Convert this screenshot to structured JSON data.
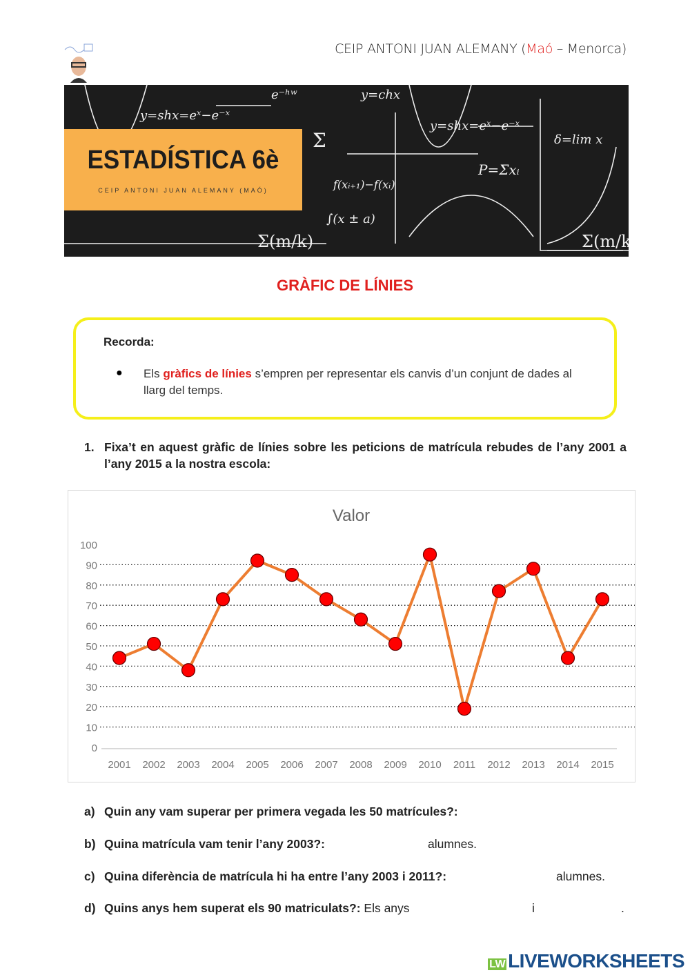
{
  "header": {
    "school_prefix": "CEIP ANTONI JUAN ALEMANY (",
    "school_city": "Maó",
    "school_suffix": " – Menorca)"
  },
  "banner": {
    "title": "ESTADÍSTICA 6è",
    "subtitle": "CEIP ANTONI JUAN ALEMANY (MAÓ)"
  },
  "heading": "GRÀFIC DE LÍNIES",
  "reminder": {
    "label": "Recorda:",
    "bullet": "●",
    "text_before": "Els ",
    "highlight": "gràfics de línies",
    "text_after": " s’empren per representar els canvis d’un conjunt de dades al llarg del temps."
  },
  "question1": {
    "number": "1.",
    "text": "Fixa’t en aquest gràfic de línies sobre les peticions de matrícula rebudes de l’any 2001 a l’any 2015 a la nostra escola:"
  },
  "chart_data": {
    "type": "line",
    "title": "Valor",
    "categories": [
      "2001",
      "2002",
      "2003",
      "2004",
      "2005",
      "2006",
      "2007",
      "2008",
      "2009",
      "2010",
      "2011",
      "2012",
      "2013",
      "2014",
      "2015"
    ],
    "values": [
      44,
      51,
      38,
      73,
      92,
      85,
      73,
      63,
      51,
      95,
      19,
      77,
      88,
      44,
      73
    ],
    "ylim": [
      0,
      100
    ],
    "yticks": [
      "0",
      "10",
      "20",
      "30",
      "40",
      "50",
      "60",
      "70",
      "80",
      "90",
      "100"
    ],
    "grid": true,
    "line_color": "#ed7d31",
    "marker_color": "#ff0000"
  },
  "subquestions": [
    {
      "letter": "a)",
      "text": "Quin any vam superar per primera vegada les 50 matrícules?:"
    },
    {
      "letter": "b)",
      "text": "Quina matrícula vam tenir l’any 2003?:",
      "suffix": "alumnes."
    },
    {
      "letter": "c)",
      "text": "Quina diferència de matrícula hi ha entre l’any 2003 i 2011?:",
      "suffix": "alumnes."
    },
    {
      "letter": "d)",
      "text": "Quins anys hem superat els 90 matriculats?:",
      "after": "Els anys",
      "middle": "i",
      "end": "."
    }
  ],
  "footer": {
    "logo": "LIVEWORKSHEETS"
  },
  "colors": {
    "accent_red": "#e0201e",
    "banner_orange": "#f8b04c",
    "reminder_border": "#f5ef1a"
  }
}
